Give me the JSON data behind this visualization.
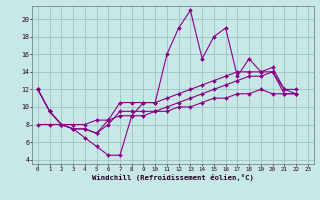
{
  "xlabel": "Windchill (Refroidissement éolien,°C)",
  "bg_color": "#c8e8e8",
  "line_color": "#880088",
  "grid_color": "#99bbbb",
  "xlim": [
    -0.5,
    23.5
  ],
  "ylim": [
    3.5,
    21.5
  ],
  "xticks": [
    0,
    1,
    2,
    3,
    4,
    5,
    6,
    7,
    8,
    9,
    10,
    11,
    12,
    13,
    14,
    15,
    16,
    17,
    18,
    19,
    20,
    21,
    22,
    23
  ],
  "yticks": [
    4,
    6,
    8,
    10,
    12,
    14,
    16,
    18,
    20
  ],
  "x_values": [
    0,
    1,
    2,
    3,
    4,
    5,
    6,
    7,
    8,
    9,
    10,
    11,
    12,
    13,
    14,
    15,
    16,
    17,
    18,
    19,
    20,
    21,
    22
  ],
  "series": [
    [
      12,
      9.5,
      8,
      7.5,
      6.5,
      5.5,
      4.5,
      4.5,
      9.0,
      10.5,
      10.5,
      16.0,
      19.0,
      21.0,
      15.5,
      18.0,
      19.0,
      13.5,
      15.5,
      14.0,
      14.0,
      12.0,
      12.0
    ],
    [
      12,
      9.5,
      8,
      7.5,
      7.5,
      7.0,
      8.5,
      10.5,
      10.5,
      10.5,
      10.5,
      11.0,
      11.5,
      12.0,
      12.5,
      13.0,
      13.5,
      14.0,
      14.0,
      14.0,
      14.5,
      12.0,
      11.5
    ],
    [
      12,
      9.5,
      8,
      7.5,
      7.5,
      7.0,
      8.0,
      9.5,
      9.5,
      9.5,
      9.5,
      10.0,
      10.5,
      11.0,
      11.5,
      12.0,
      12.5,
      13.0,
      13.5,
      13.5,
      14.0,
      11.5,
      11.5
    ],
    [
      8.0,
      8.0,
      8.0,
      8.0,
      8.0,
      8.5,
      8.5,
      9.0,
      9.0,
      9.0,
      9.5,
      9.5,
      10.0,
      10.0,
      10.5,
      11.0,
      11.0,
      11.5,
      11.5,
      12.0,
      11.5,
      11.5,
      11.5
    ]
  ]
}
